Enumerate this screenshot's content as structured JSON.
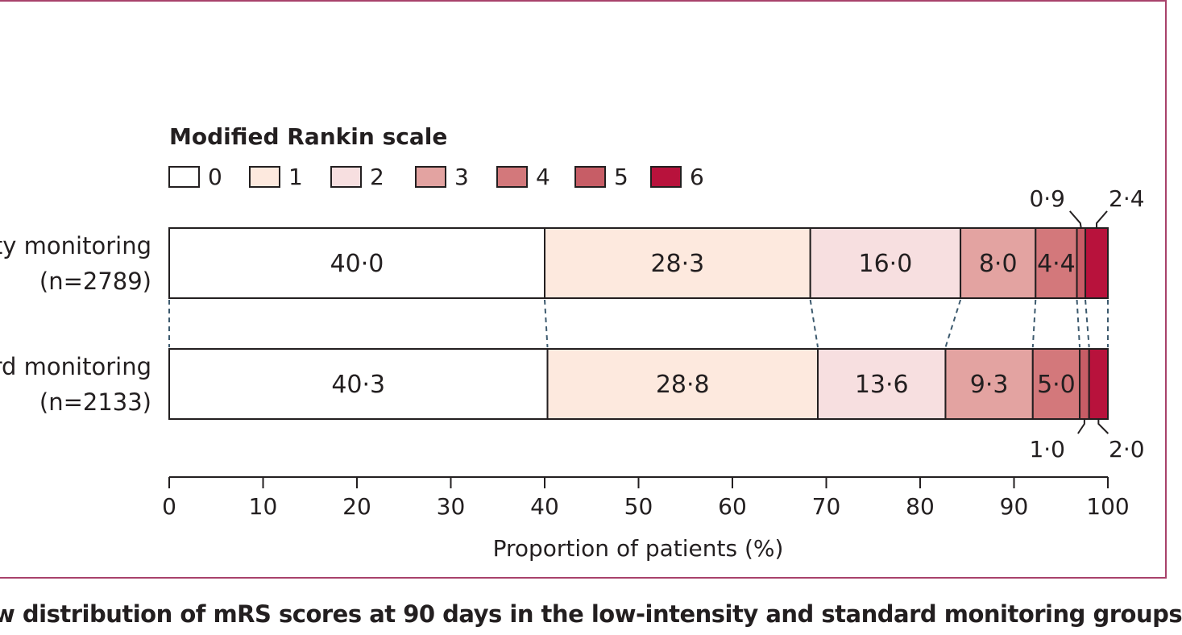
{
  "chart_data": {
    "type": "bar",
    "orientation": "horizontal",
    "stacked": true,
    "legend_title": "Modified Rankin scale",
    "legend_placement": "top-left",
    "categories": [
      "ity monitoring\n(n=2789)",
      "rd monitoring\n(n=2133)"
    ],
    "category_lines": [
      [
        "ity monitoring",
        "(n=2789)"
      ],
      [
        "rd monitoring",
        "(n=2133)"
      ]
    ],
    "series": [
      {
        "name": "0",
        "values": [
          40.0,
          40.3
        ],
        "labels": [
          "40·0",
          "40·3"
        ]
      },
      {
        "name": "1",
        "values": [
          28.3,
          28.8
        ],
        "labels": [
          "28·3",
          "28·8"
        ]
      },
      {
        "name": "2",
        "values": [
          16.0,
          13.6
        ],
        "labels": [
          "16·0",
          "13·6"
        ]
      },
      {
        "name": "3",
        "values": [
          8.0,
          9.3
        ],
        "labels": [
          "8·0",
          "9·3"
        ]
      },
      {
        "name": "4",
        "values": [
          4.4,
          5.0
        ],
        "labels": [
          "4·4",
          "5·0"
        ]
      },
      {
        "name": "5",
        "values": [
          0.9,
          1.0
        ],
        "labels": [
          "0·9",
          "1·0"
        ]
      },
      {
        "name": "6",
        "values": [
          2.4,
          2.0
        ],
        "labels": [
          "2·4",
          "2·0"
        ]
      }
    ],
    "colors": [
      "#ffffff",
      "#fde9de",
      "#f7dfe0",
      "#e3a3a1",
      "#d3787b",
      "#c75d66",
      "#b8123c"
    ],
    "xlabel": "Proportion of patients (%)",
    "xlim": [
      0,
      100
    ],
    "xticks": [
      "0",
      "10",
      "20",
      "30",
      "40",
      "50",
      "60",
      "70",
      "80",
      "90",
      "100"
    ],
    "grid": false
  },
  "caption": "w distribution of mRS scores at 90 days in the low-intensity and standard monitoring groups"
}
